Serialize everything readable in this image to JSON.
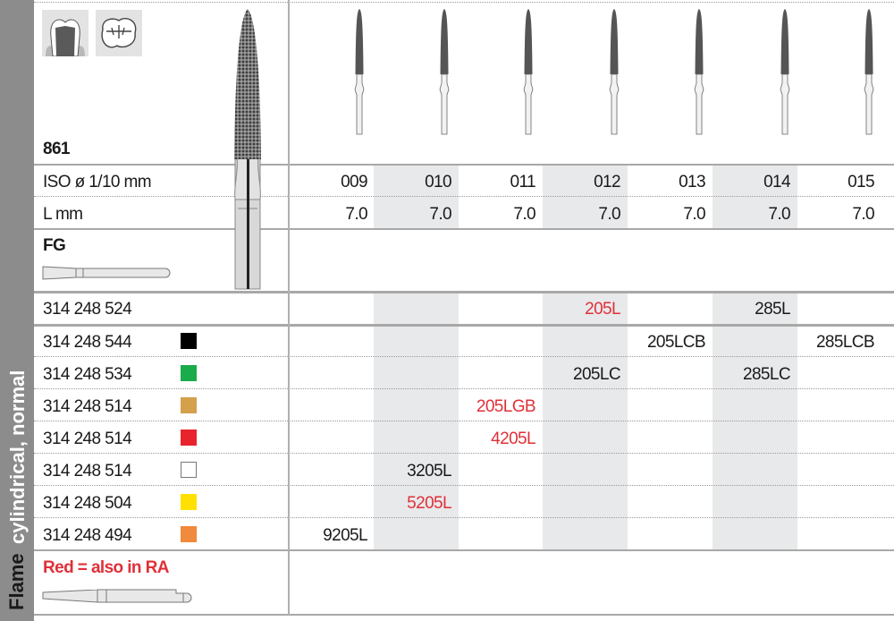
{
  "side": {
    "group_label": "cylindrical, normal",
    "shape_label": "Flame"
  },
  "header": {
    "figure_number": "861",
    "iso_label": "ISO ø 1/10 mm",
    "length_label": "L mm",
    "shank_label": "FG",
    "legend_note": "Red = also in RA",
    "note_color": "#e03038"
  },
  "icons": [
    "crown-prep-icon",
    "occlusal-fissure-icon",
    "fg-shank-icon",
    "ra-shank-icon",
    "diamond-burr-image"
  ],
  "columns": {
    "iso": [
      "009",
      "010",
      "011",
      "012",
      "013",
      "014",
      "015"
    ],
    "length": [
      "7.0",
      "7.0",
      "7.0",
      "7.0",
      "7.0",
      "7.0",
      "7.0"
    ]
  },
  "rows": [
    {
      "code": "314 248 524",
      "swatch": null,
      "cells": [
        "",
        "",
        "",
        "205L",
        "",
        "285L",
        ""
      ],
      "red": [
        false,
        false,
        false,
        true,
        false,
        false,
        false
      ]
    },
    {
      "code": "314 248 544",
      "swatch": "#000000",
      "cells": [
        "",
        "",
        "",
        "",
        "205LCB",
        "",
        "285LCB"
      ],
      "red": [
        false,
        false,
        false,
        false,
        false,
        false,
        false
      ]
    },
    {
      "code": "314 248 534",
      "swatch": "#1aab4a",
      "cells": [
        "",
        "",
        "",
        "205LC",
        "",
        "285LC",
        ""
      ],
      "red": [
        false,
        false,
        false,
        false,
        false,
        false,
        false
      ]
    },
    {
      "code": "314 248 514",
      "swatch": "#d4a04c",
      "cells": [
        "",
        "",
        "205LGB",
        "",
        "",
        "",
        ""
      ],
      "red": [
        false,
        false,
        true,
        false,
        false,
        false,
        false
      ]
    },
    {
      "code": "314 248 514",
      "swatch": "#e8232b",
      "cells": [
        "",
        "",
        "4205L",
        "",
        "",
        "",
        ""
      ],
      "red": [
        false,
        false,
        true,
        false,
        false,
        false,
        false
      ]
    },
    {
      "code": "314 248 514",
      "swatch": "#ffffff",
      "cells": [
        "",
        "3205L",
        "",
        "",
        "",
        "",
        ""
      ],
      "red": [
        false,
        false,
        false,
        false,
        false,
        false,
        false
      ]
    },
    {
      "code": "314 248 504",
      "swatch": "#ffe000",
      "cells": [
        "",
        "5205L",
        "",
        "",
        "",
        "",
        ""
      ],
      "red": [
        false,
        true,
        false,
        false,
        false,
        false,
        false
      ]
    },
    {
      "code": "314 248 494",
      "swatch": "#f08a3c",
      "cells": [
        "9205L",
        "",
        "",
        "",
        "",
        "",
        ""
      ],
      "red": [
        false,
        false,
        false,
        false,
        false,
        false,
        false
      ]
    }
  ]
}
